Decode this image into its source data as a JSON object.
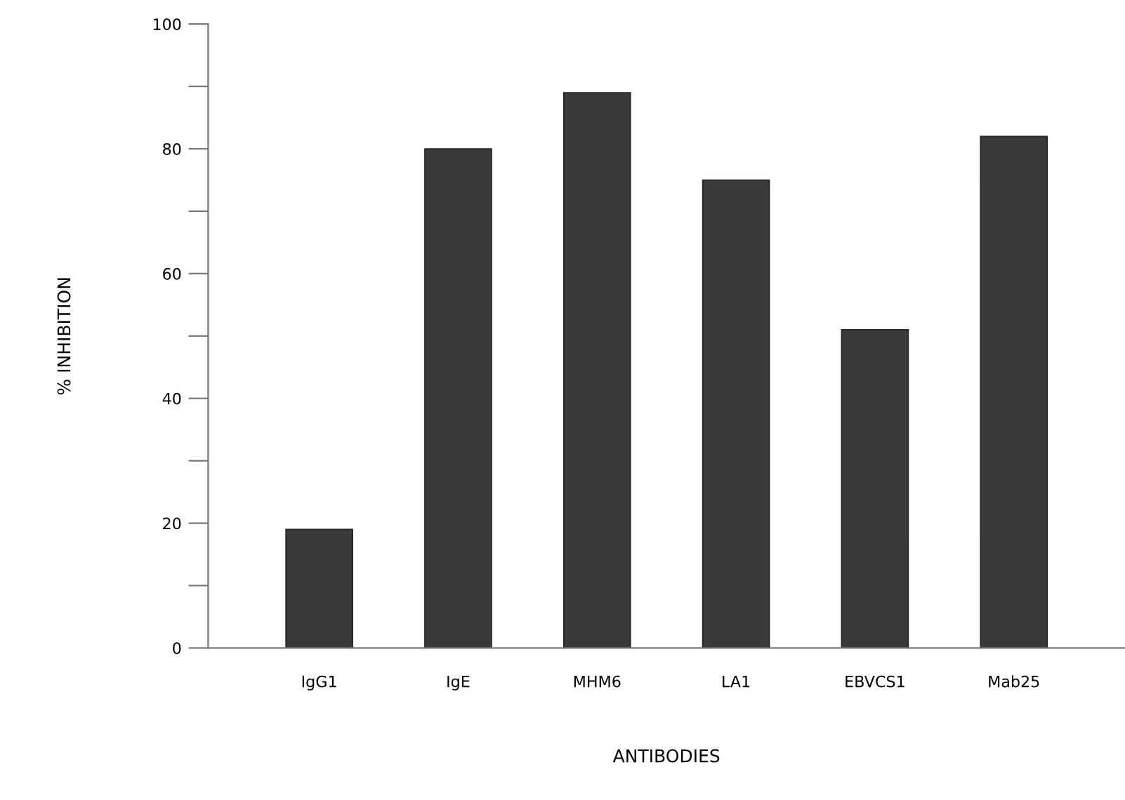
{
  "chart_data": {
    "type": "bar",
    "xlabel": "ANTIBODIES",
    "ylabel": "% INHIBITION",
    "categories": [
      "IgG1",
      "IgE",
      "MHM6",
      "LA1",
      "EBVCS1",
      "Mab25"
    ],
    "values": [
      19,
      80,
      89,
      75,
      51,
      82
    ],
    "color": "#3a3a3a",
    "ylim": [
      0,
      100
    ],
    "yticks": [
      0,
      {
        "value": 10,
        "label": null
      },
      20,
      {
        "value": 30,
        "label": null
      },
      40,
      {
        "value": 50,
        "label": null
      },
      60,
      {
        "value": 70,
        "label": null
      },
      80,
      {
        "value": 90,
        "label": null
      },
      100
    ],
    "grid": false
  }
}
